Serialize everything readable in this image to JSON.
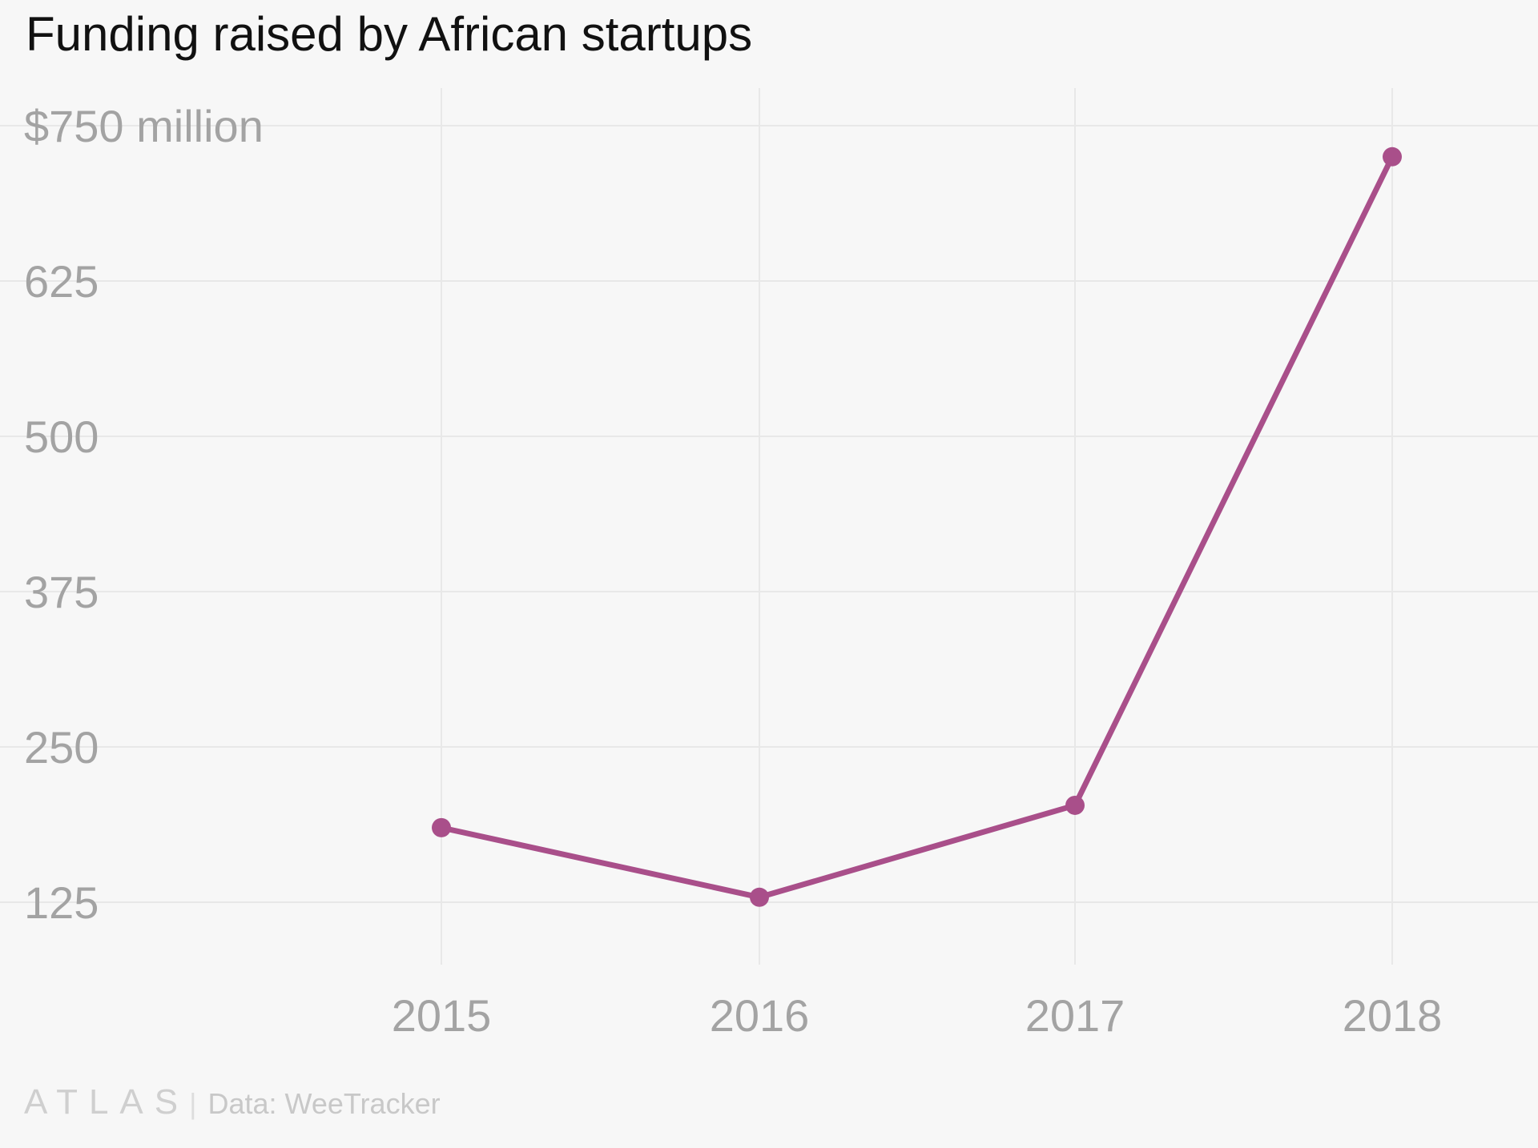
{
  "chart_data": {
    "type": "line",
    "title": "Funding raised by African startups",
    "categories": [
      "2015",
      "2016",
      "2017",
      "2018"
    ],
    "series": [
      {
        "values": [
          185,
          129,
          203,
          725
        ],
        "color": "#a94f8a"
      }
    ],
    "yticks": [
      125,
      250,
      375,
      500,
      625,
      750
    ],
    "ytick_labels": [
      "125",
      "250",
      "375",
      "500",
      "625",
      "$750 million"
    ],
    "ylim": [
      80,
      790
    ],
    "grid": true,
    "xlabel": "",
    "ylabel": ""
  },
  "footer": {
    "logo": "ATLAS",
    "source": "Data: WeeTracker"
  }
}
